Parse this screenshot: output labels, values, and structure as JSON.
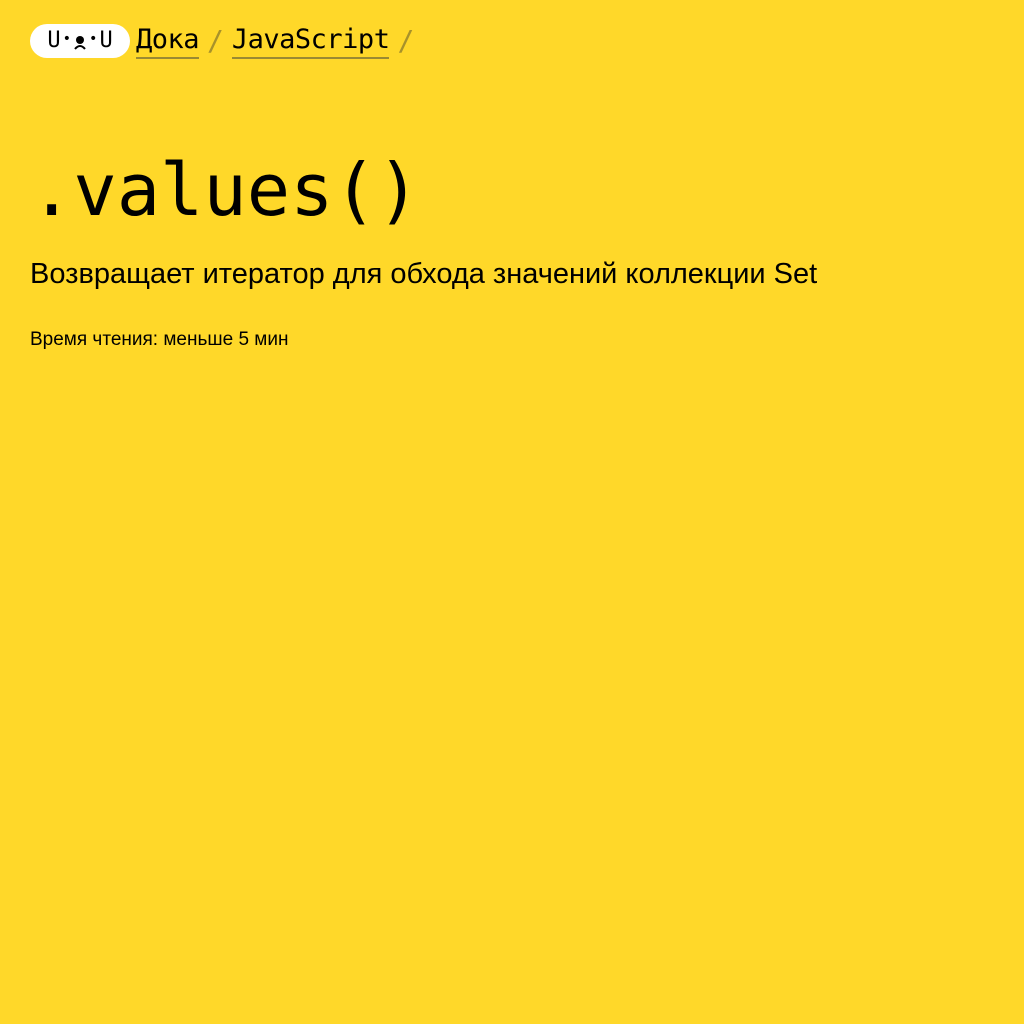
{
  "breadcrumbs": {
    "logo_text": "U•ᴥ•U",
    "logo_left": "U",
    "logo_right": "U",
    "items": [
      {
        "label": "Дока"
      },
      {
        "label": "JavaScript"
      }
    ],
    "separator": "/"
  },
  "article": {
    "title": ".values()",
    "description": "Возвращает итератор для обхода значений коллекции Set",
    "reading_time": "Время чтения: меньше 5 мин"
  },
  "colors": {
    "background": "#ffd829",
    "text": "#000000",
    "logo_bg": "#ffffff",
    "link_underline": "#9b8a32"
  },
  "icons": {
    "logo": "doka-dog-face-logo"
  }
}
